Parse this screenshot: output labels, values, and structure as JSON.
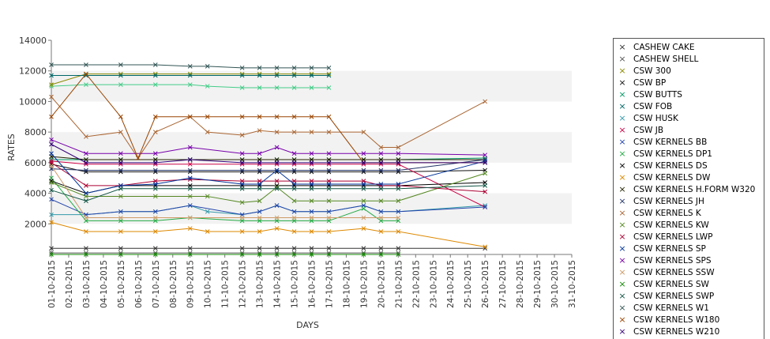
{
  "chart_data": {
    "type": "line",
    "title": "",
    "xlabel": "DAYS",
    "ylabel": "RATES",
    "ylim": [
      0,
      14000
    ],
    "yticks": [
      2000,
      4000,
      6000,
      8000,
      10000,
      12000,
      14000
    ],
    "grid": "alternating horizontal bands",
    "legend_position": "right",
    "categories": [
      "01-10-2015",
      "02-10-2015",
      "03-10-2015",
      "04-10-2015",
      "05-10-2015",
      "06-10-2015",
      "07-10-2015",
      "08-10-2015",
      "09-10-2015",
      "10-10-2015",
      "11-10-2015",
      "12-10-2015",
      "13-10-2015",
      "14-10-2015",
      "15-10-2015",
      "16-10-2015",
      "17-10-2015",
      "18-10-2015",
      "19-10-2015",
      "20-10-2015",
      "21-10-2015",
      "22-10-2015",
      "23-10-2015",
      "24-10-2015",
      "25-10-2015",
      "26-10-2015",
      "27-10-2015",
      "28-10-2015",
      "29-10-2015",
      "30-10-2015",
      "31-10-2015"
    ],
    "series": [
      {
        "name": "CASHEW CAKE",
        "color": "#333333",
        "values": [
          400,
          null,
          400,
          null,
          400,
          null,
          400,
          null,
          400,
          null,
          null,
          400,
          400,
          400,
          400,
          400,
          400,
          null,
          400,
          400,
          400,
          null,
          null,
          null,
          null,
          400,
          null,
          null,
          null,
          null,
          null
        ]
      },
      {
        "name": "CASHEW SHELL",
        "color": "#555555",
        "values": [
          100,
          null,
          100,
          null,
          100,
          null,
          100,
          null,
          100,
          null,
          null,
          100,
          100,
          100,
          100,
          100,
          100,
          null,
          100,
          100,
          100,
          null,
          null,
          null,
          null,
          null,
          null,
          null,
          null,
          null,
          null
        ]
      },
      {
        "name": "CSW 300",
        "color": "#8a8a00",
        "values": [
          11100,
          null,
          11800,
          null,
          11800,
          null,
          11800,
          null,
          11800,
          null,
          null,
          11800,
          11800,
          11800,
          11800,
          11800,
          11800,
          null,
          null,
          null,
          null,
          null,
          null,
          null,
          null,
          null,
          null,
          null,
          null,
          null,
          null
        ]
      },
      {
        "name": "CSW BP",
        "color": "#111111",
        "values": [
          5900,
          null,
          5400,
          null,
          5400,
          null,
          5400,
          null,
          5400,
          null,
          null,
          5400,
          5400,
          5400,
          5400,
          5400,
          5400,
          null,
          5400,
          5400,
          5400,
          null,
          null,
          null,
          null,
          5500,
          null,
          null,
          null,
          null,
          null
        ]
      },
      {
        "name": "CSW BUTTS",
        "color": "#009966",
        "values": [
          6200,
          null,
          6200,
          null,
          6200,
          null,
          6200,
          null,
          6200,
          null,
          null,
          6200,
          6200,
          6200,
          6200,
          6200,
          6200,
          null,
          6200,
          6200,
          6200,
          null,
          null,
          null,
          null,
          6300,
          null,
          null,
          null,
          null,
          null
        ]
      },
      {
        "name": "CSW FOB",
        "color": "#006666",
        "values": [
          11700,
          null,
          11700,
          null,
          11700,
          null,
          11700,
          null,
          11700,
          null,
          null,
          11700,
          11700,
          11700,
          11700,
          11700,
          11700,
          null,
          null,
          null,
          null,
          null,
          null,
          null,
          null,
          null,
          null,
          null,
          null,
          null,
          null
        ]
      },
      {
        "name": "CSW HUSK",
        "color": "#3399aa",
        "values": [
          2600,
          null,
          2600,
          null,
          2800,
          null,
          2800,
          null,
          3200,
          2800,
          null,
          2600,
          2800,
          3200,
          2800,
          2800,
          2800,
          null,
          3200,
          2800,
          2800,
          null,
          null,
          null,
          null,
          3200,
          null,
          null,
          null,
          null,
          null
        ]
      },
      {
        "name": "CSW JB",
        "color": "#cc0044",
        "values": [
          6100,
          null,
          5900,
          null,
          5900,
          null,
          5900,
          null,
          5900,
          null,
          null,
          5900,
          5900,
          5900,
          5900,
          5900,
          5900,
          null,
          5900,
          5900,
          5900,
          null,
          null,
          null,
          null,
          3100,
          null,
          null,
          null,
          null,
          null
        ]
      },
      {
        "name": "CSW KERNELS BB",
        "color": "#2244aa",
        "values": [
          3600,
          null,
          2600,
          null,
          2800,
          null,
          2800,
          null,
          3200,
          null,
          null,
          2600,
          2800,
          3200,
          2800,
          2800,
          2800,
          null,
          3200,
          2800,
          2800,
          null,
          null,
          null,
          null,
          3100,
          null,
          null,
          null,
          null,
          null
        ]
      },
      {
        "name": "CSW KERNELS DP1",
        "color": "#22aa44",
        "values": [
          5000,
          null,
          2200,
          null,
          2200,
          null,
          2200,
          null,
          2400,
          null,
          null,
          2200,
          2200,
          2200,
          2200,
          2200,
          2200,
          null,
          3000,
          2200,
          2200,
          null,
          null,
          null,
          null,
          null,
          null,
          null,
          null,
          null,
          null
        ]
      },
      {
        "name": "CSW KERNELS DS",
        "color": "#000000",
        "values": [
          4800,
          null,
          4000,
          null,
          4500,
          null,
          4500,
          null,
          4500,
          null,
          null,
          4500,
          4500,
          4500,
          4500,
          4500,
          4500,
          null,
          4500,
          4500,
          4500,
          null,
          null,
          null,
          null,
          4700,
          null,
          null,
          null,
          null,
          null
        ]
      },
      {
        "name": "CSW KERNELS DW",
        "color": "#dd8800",
        "values": [
          2100,
          null,
          1500,
          null,
          1500,
          null,
          1500,
          null,
          1700,
          1500,
          null,
          1500,
          1500,
          1700,
          1500,
          1500,
          1500,
          null,
          1700,
          1500,
          1500,
          null,
          null,
          null,
          null,
          500,
          null,
          null,
          null,
          null,
          null
        ]
      },
      {
        "name": "CSW KERNELS H.FORM W320",
        "color": "#222200",
        "values": [
          6400,
          null,
          6200,
          null,
          6200,
          null,
          6200,
          null,
          6200,
          null,
          null,
          6200,
          6200,
          6200,
          6200,
          6200,
          6200,
          null,
          6200,
          6200,
          6200,
          null,
          null,
          null,
          null,
          6200,
          null,
          null,
          null,
          null,
          null
        ]
      },
      {
        "name": "CSW KERNELS JH",
        "color": "#223366",
        "values": [
          5600,
          null,
          5500,
          null,
          5500,
          null,
          5500,
          null,
          5500,
          null,
          null,
          5500,
          5500,
          5500,
          5500,
          5500,
          5500,
          null,
          5500,
          5500,
          5500,
          null,
          null,
          null,
          null,
          6200,
          null,
          null,
          null,
          null,
          null
        ]
      },
      {
        "name": "CSW KERNELS K",
        "color": "#aa6633",
        "values": [
          10300,
          null,
          7700,
          null,
          8000,
          6300,
          8000,
          null,
          9000,
          8000,
          null,
          7800,
          8100,
          8000,
          8000,
          8000,
          8000,
          null,
          8000,
          7000,
          7000,
          null,
          null,
          null,
          null,
          10000,
          null,
          null,
          null,
          null,
          null
        ]
      },
      {
        "name": "CSW KERNELS KW",
        "color": "#558822",
        "values": [
          4700,
          null,
          3800,
          null,
          3800,
          null,
          3800,
          null,
          3800,
          3800,
          null,
          3400,
          3500,
          4400,
          3500,
          3500,
          3500,
          null,
          3500,
          3500,
          3500,
          null,
          null,
          null,
          null,
          5300,
          null,
          null,
          null,
          null,
          null
        ]
      },
      {
        "name": "CSW KERNELS LWP",
        "color": "#aa0033",
        "values": [
          6000,
          null,
          4500,
          null,
          4500,
          null,
          4800,
          null,
          4900,
          null,
          null,
          4800,
          4800,
          4800,
          4800,
          4800,
          4800,
          null,
          4800,
          4500,
          4500,
          null,
          null,
          null,
          null,
          4100,
          null,
          null,
          null,
          null,
          null
        ]
      },
      {
        "name": "CSW KERNELS SP",
        "color": "#003399",
        "values": [
          6600,
          null,
          4000,
          null,
          4500,
          null,
          4600,
          null,
          5000,
          null,
          null,
          4600,
          4600,
          5500,
          4600,
          4600,
          4600,
          null,
          4600,
          4600,
          4600,
          null,
          null,
          null,
          null,
          6100,
          null,
          null,
          null,
          null,
          null
        ]
      },
      {
        "name": "CSW KERNELS SPS",
        "color": "#7700aa",
        "values": [
          7500,
          null,
          6600,
          null,
          6600,
          null,
          6600,
          null,
          7000,
          null,
          null,
          6600,
          6600,
          7000,
          6600,
          6600,
          6600,
          null,
          6600,
          6600,
          6600,
          null,
          null,
          null,
          null,
          6500,
          null,
          null,
          null,
          null,
          null
        ]
      },
      {
        "name": "CSW KERNELS SSW",
        "color": "#cc9966",
        "values": [
          5800,
          null,
          2400,
          null,
          2400,
          null,
          2400,
          null,
          2400,
          null,
          null,
          2400,
          2400,
          2400,
          2400,
          2400,
          2400,
          null,
          2400,
          2400,
          2400,
          null,
          null,
          null,
          null,
          null,
          null,
          null,
          null,
          null,
          null
        ]
      },
      {
        "name": "CSW KERNELS SW",
        "color": "#118800",
        "values": [
          0,
          null,
          0,
          null,
          0,
          null,
          0,
          null,
          0,
          null,
          null,
          0,
          0,
          0,
          0,
          0,
          0,
          null,
          0,
          0,
          0,
          null,
          null,
          null,
          null,
          null,
          null,
          null,
          null,
          null,
          null
        ]
      },
      {
        "name": "CSW KERNELS SWP",
        "color": "#115544",
        "values": [
          4200,
          null,
          3500,
          null,
          4300,
          null,
          4300,
          null,
          4300,
          null,
          null,
          4300,
          4300,
          4300,
          4300,
          4300,
          4300,
          null,
          4300,
          4300,
          4300,
          null,
          null,
          null,
          null,
          4500,
          null,
          null,
          null,
          null,
          null
        ]
      },
      {
        "name": "CSW KERNELS W1",
        "color": "#335555",
        "values": [
          12400,
          null,
          12400,
          null,
          12400,
          null,
          12400,
          null,
          12300,
          12300,
          null,
          12200,
          12200,
          12200,
          12200,
          12200,
          12200,
          null,
          null,
          null,
          null,
          null,
          null,
          null,
          null,
          null,
          null,
          null,
          null,
          null,
          null
        ]
      },
      {
        "name": "CSW KERNELS W180",
        "color": "#994400",
        "values": [
          9000,
          null,
          11800,
          null,
          9000,
          6300,
          9000,
          null,
          9000,
          9000,
          null,
          9000,
          9000,
          9000,
          9000,
          9000,
          9000,
          null,
          6000,
          6000,
          6000,
          null,
          null,
          null,
          null,
          6000,
          null,
          null,
          null,
          null,
          null
        ]
      },
      {
        "name": "CSW KERNELS W210",
        "color": "#330077",
        "values": [
          7200,
          null,
          6000,
          null,
          6000,
          null,
          6000,
          null,
          6200,
          null,
          null,
          6000,
          6000,
          6000,
          6000,
          6000,
          6000,
          null,
          6000,
          6000,
          6000,
          null,
          null,
          null,
          null,
          6000,
          null,
          null,
          null,
          null,
          null
        ]
      }
    ],
    "extra_lines": [
      {
        "color": "#44cc88",
        "values": [
          11000,
          null,
          11100,
          null,
          11100,
          null,
          11100,
          null,
          11100,
          11000,
          null,
          10900,
          10900,
          10900,
          10900,
          10900,
          10900,
          null,
          null,
          null,
          null,
          null,
          null,
          null,
          null,
          null,
          null,
          null,
          null,
          null,
          null
        ]
      }
    ]
  }
}
